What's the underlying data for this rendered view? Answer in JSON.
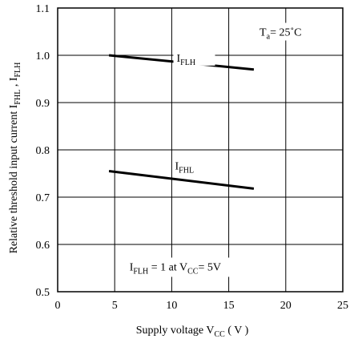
{
  "chart_data": {
    "type": "line",
    "ylabel": {
      "main": "Relative threshold input current I",
      "sub1": "FHL",
      "sep": " , I",
      "sub2": "FLH"
    },
    "xlabel": {
      "main": "Supply voltage V",
      "sub": "CC",
      "unit": " ( V )"
    },
    "xlim": [
      0,
      25
    ],
    "ylim": [
      0.5,
      1.1
    ],
    "xticks": [
      "0",
      "5",
      "10",
      "15",
      "20",
      "25"
    ],
    "yticks": [
      "0.5",
      "0.6",
      "0.7",
      "0.8",
      "0.9",
      "1.0",
      "1.1"
    ],
    "grid": true,
    "series": [
      {
        "name": "I_FLH",
        "label_main": "I",
        "label_sub": "FLH",
        "x": [
          4.5,
          17.2
        ],
        "y": [
          1.0,
          0.97
        ]
      },
      {
        "name": "I_FHL",
        "label_main": "I",
        "label_sub": "FHL",
        "x": [
          4.5,
          17.2
        ],
        "y": [
          0.755,
          0.718
        ]
      }
    ],
    "annotations": {
      "temp": {
        "main": "T",
        "sub": "a",
        "rest": "= 25˚C"
      },
      "condition": {
        "a": "I",
        "a_sub": "FLH",
        "b": " = 1 at V",
        "b_sub": "CC",
        "c": "= 5V"
      }
    }
  }
}
